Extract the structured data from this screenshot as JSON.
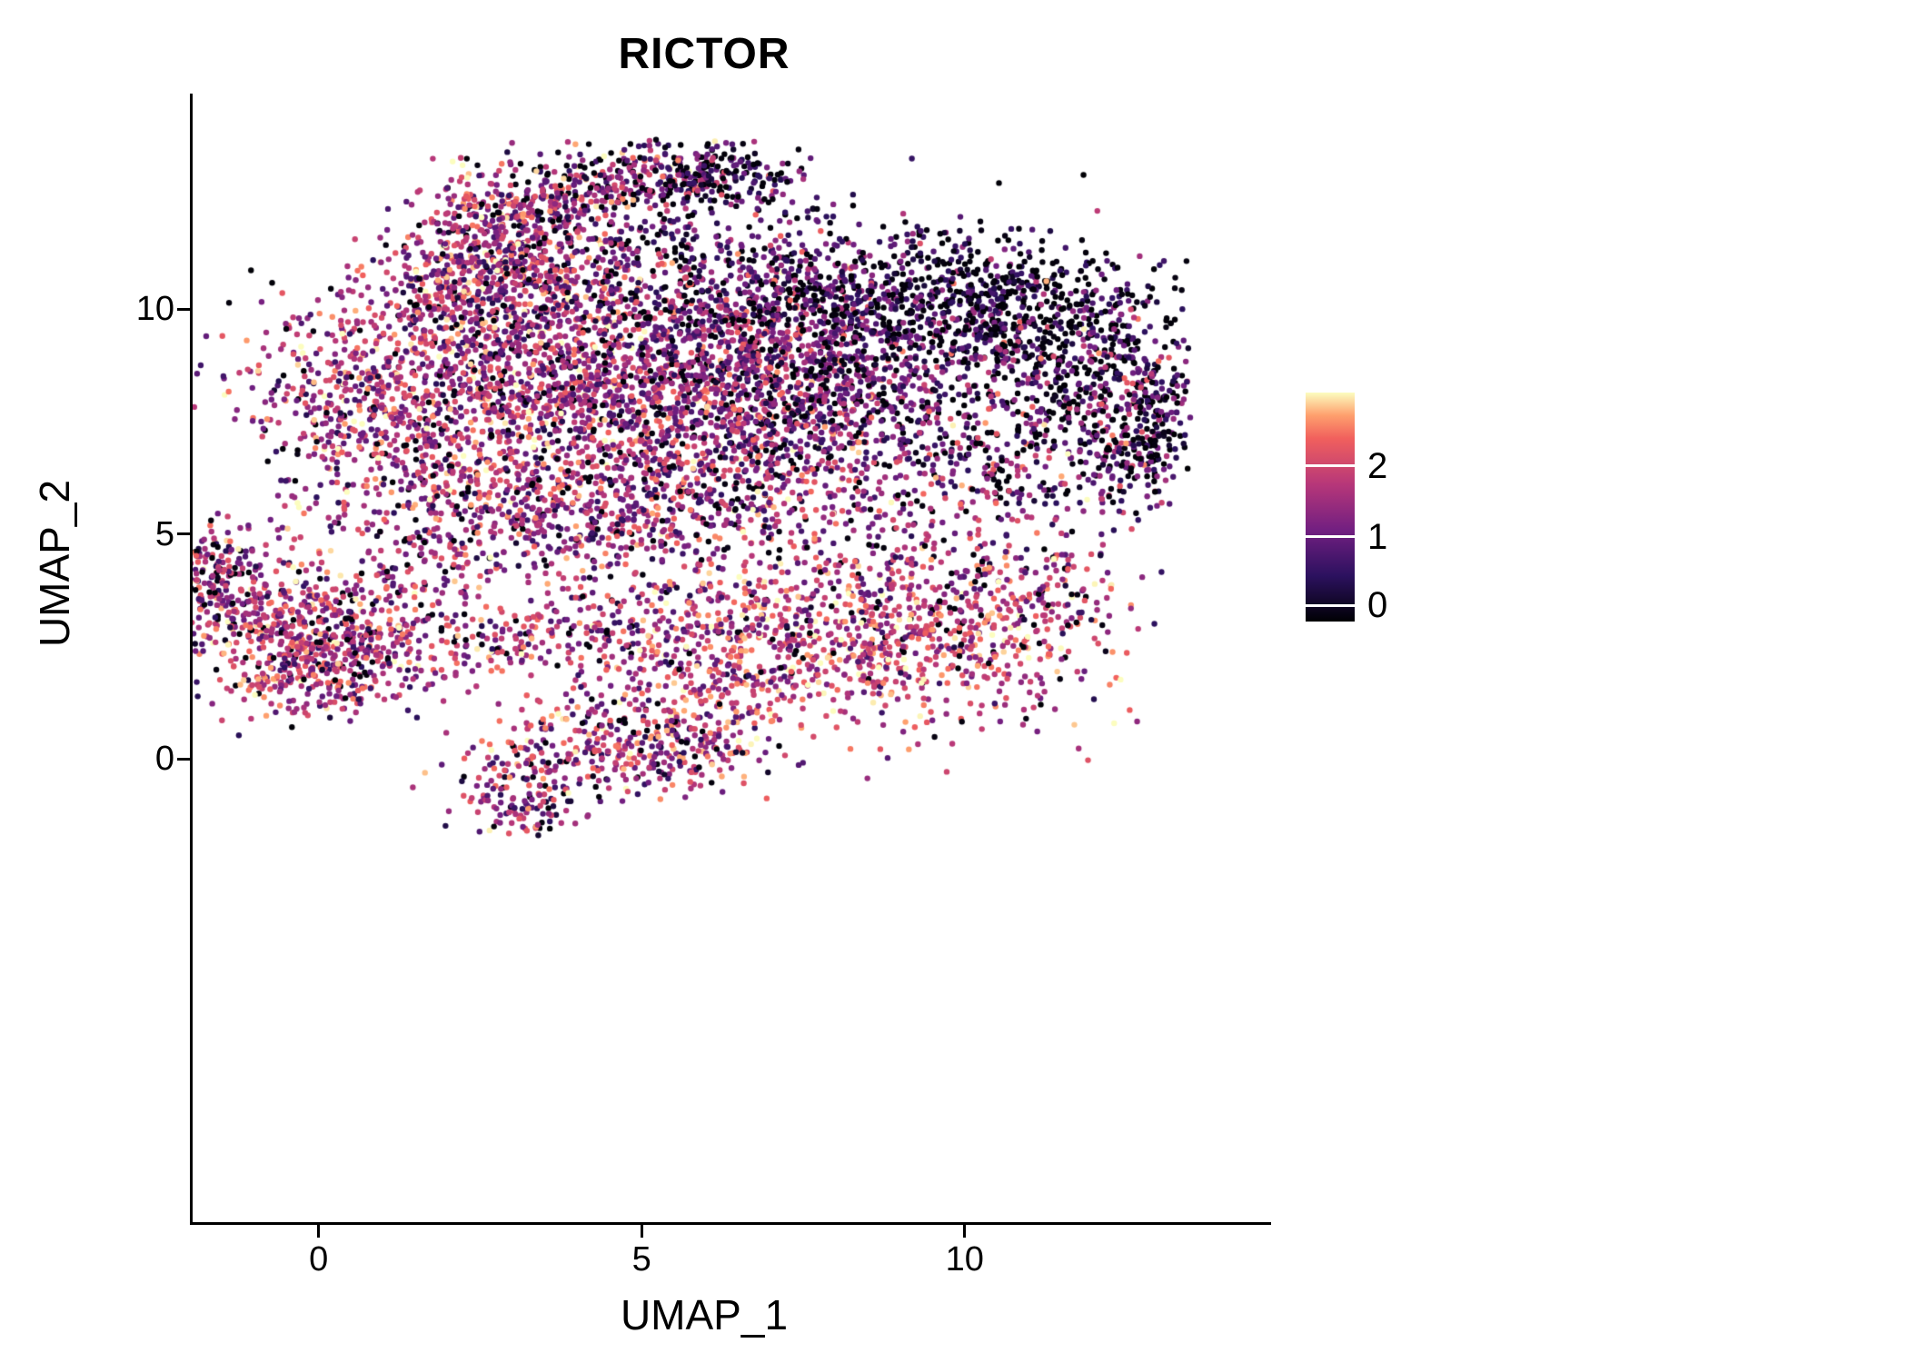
{
  "chart_data": {
    "type": "scatter",
    "title": "RICTOR",
    "xlabel": "UMAP_1",
    "ylabel": "UMAP_2",
    "x_ticks": [
      {
        "value": 0,
        "label": "0"
      },
      {
        "value": 5,
        "label": "5"
      },
      {
        "value": 10,
        "label": "10"
      }
    ],
    "y_ticks": [
      {
        "value": 0,
        "label": "0"
      },
      {
        "value": 5,
        "label": "5"
      },
      {
        "value": 10,
        "label": "10"
      }
    ],
    "xlim": [
      -1.95,
      14.7
    ],
    "ylim": [
      -10.3,
      14.75
    ],
    "grid": false,
    "background_color": "#ffffff",
    "axis_color": "#000000",
    "point_radius_px": 3.2,
    "seed": 42,
    "colorbar": {
      "position": "right",
      "colormap": "magma",
      "vmin": 0,
      "vmax": 2.6,
      "ticks": [
        {
          "label": "2",
          "frac_from_top": 0.32
        },
        {
          "label": "1",
          "frac_from_top": 0.63
        },
        {
          "label": "0",
          "frac_from_top": 0.93
        }
      ],
      "stops": [
        [
          0.0,
          "#000004"
        ],
        [
          0.2,
          "#2c115f"
        ],
        [
          0.4,
          "#721f81"
        ],
        [
          0.6,
          "#b73779"
        ],
        [
          0.8,
          "#f1605d"
        ],
        [
          0.9,
          "#fe9f6d"
        ],
        [
          1.0,
          "#fcfdbf"
        ]
      ]
    },
    "cluster_format": [
      "n_points",
      "center_x",
      "center_y",
      "sd_x",
      "sd_y",
      "expr_mean",
      "expr_sd",
      "zero_fraction"
    ],
    "clusters": [
      [
        160,
        4.0,
        12.6,
        0.7,
        0.45,
        1.3,
        0.7,
        0.12
      ],
      [
        200,
        5.3,
        13.0,
        0.8,
        0.4,
        1.1,
        0.7,
        0.2
      ],
      [
        150,
        6.3,
        12.9,
        0.6,
        0.4,
        0.8,
        0.6,
        0.3
      ],
      [
        80,
        3.4,
        11.9,
        0.5,
        0.5,
        1.4,
        0.6,
        0.1
      ],
      [
        140,
        2.3,
        12.0,
        0.45,
        0.7,
        1.5,
        0.6,
        0.08
      ],
      [
        260,
        2.3,
        10.5,
        0.8,
        0.6,
        1.5,
        0.6,
        0.07
      ],
      [
        240,
        3.3,
        11.2,
        0.9,
        0.7,
        1.4,
        0.6,
        0.1
      ],
      [
        500,
        2.0,
        8.8,
        1.4,
        1.1,
        1.5,
        0.6,
        0.07
      ],
      [
        450,
        3.7,
        9.3,
        1.3,
        1.2,
        1.4,
        0.6,
        0.08
      ],
      [
        420,
        3.0,
        7.0,
        1.5,
        1.1,
        1.5,
        0.6,
        0.07
      ],
      [
        300,
        0.7,
        7.8,
        1.0,
        1.0,
        1.5,
        0.6,
        0.07
      ],
      [
        350,
        4.8,
        7.8,
        1.2,
        1.3,
        1.4,
        0.6,
        0.08
      ],
      [
        250,
        4.5,
        5.6,
        1.5,
        0.7,
        1.4,
        0.6,
        0.1
      ],
      [
        600,
        7.0,
        9.0,
        1.5,
        1.1,
        1.1,
        0.55,
        0.15
      ],
      [
        500,
        6.3,
        7.8,
        1.3,
        1.0,
        1.2,
        0.55,
        0.12
      ],
      [
        450,
        8.3,
        8.0,
        1.3,
        1.1,
        1.1,
        0.55,
        0.15
      ],
      [
        350,
        6.0,
        10.6,
        1.5,
        0.8,
        1.0,
        0.6,
        0.18
      ],
      [
        300,
        7.8,
        10.4,
        1.2,
        0.8,
        0.8,
        0.55,
        0.25
      ],
      [
        400,
        9.8,
        10.2,
        1.3,
        0.8,
        0.5,
        0.45,
        0.45
      ],
      [
        250,
        11.2,
        10.0,
        1.0,
        0.7,
        0.5,
        0.45,
        0.45
      ],
      [
        300,
        11.5,
        8.8,
        1.2,
        0.8,
        0.8,
        0.6,
        0.3
      ],
      [
        250,
        12.3,
        7.6,
        0.7,
        0.9,
        0.9,
        0.6,
        0.3
      ],
      [
        200,
        10.6,
        6.7,
        1.0,
        0.8,
        1.0,
        0.6,
        0.2
      ],
      [
        120,
        12.9,
        7.3,
        0.3,
        0.8,
        0.8,
        0.6,
        0.35
      ],
      [
        300,
        3.5,
        5.2,
        2.0,
        0.6,
        1.4,
        0.6,
        0.1
      ],
      [
        250,
        7.5,
        5.8,
        2.0,
        0.8,
        1.3,
        0.6,
        0.12
      ],
      [
        350,
        -0.6,
        2.9,
        0.9,
        0.8,
        1.5,
        0.6,
        0.08
      ],
      [
        250,
        0.4,
        2.6,
        0.8,
        0.7,
        1.5,
        0.6,
        0.08
      ],
      [
        120,
        -1.3,
        3.9,
        0.5,
        0.6,
        1.4,
        0.6,
        0.1
      ],
      [
        60,
        -1.8,
        4.5,
        0.25,
        0.4,
        1.3,
        0.6,
        0.1
      ],
      [
        100,
        0.2,
        1.7,
        0.8,
        0.35,
        1.5,
        0.6,
        0.08
      ],
      [
        200,
        2.8,
        2.6,
        1.5,
        0.5,
        1.5,
        0.6,
        0.1
      ],
      [
        100,
        4.6,
        3.2,
        1.0,
        0.5,
        1.5,
        0.6,
        0.1
      ],
      [
        80,
        1.6,
        4.2,
        0.5,
        0.7,
        1.5,
        0.6,
        0.1
      ],
      [
        400,
        8.0,
        2.6,
        1.6,
        0.9,
        1.7,
        0.55,
        0.06
      ],
      [
        300,
        9.9,
        2.4,
        1.2,
        0.9,
        1.8,
        0.55,
        0.05
      ],
      [
        250,
        6.3,
        2.2,
        1.2,
        0.8,
        1.6,
        0.6,
        0.08
      ],
      [
        200,
        9.0,
        4.0,
        1.5,
        0.7,
        1.4,
        0.6,
        0.12
      ],
      [
        120,
        11.0,
        3.8,
        0.8,
        0.6,
        1.3,
        0.6,
        0.15
      ],
      [
        200,
        4.6,
        0.4,
        0.9,
        0.6,
        1.4,
        0.65,
        0.1
      ],
      [
        150,
        5.8,
        0.3,
        0.8,
        0.5,
        1.5,
        0.65,
        0.1
      ],
      [
        120,
        3.3,
        -0.4,
        0.6,
        0.6,
        1.4,
        0.65,
        0.1
      ],
      [
        60,
        3.2,
        -1.1,
        0.4,
        0.3,
        1.3,
        0.6,
        0.1
      ]
    ]
  }
}
